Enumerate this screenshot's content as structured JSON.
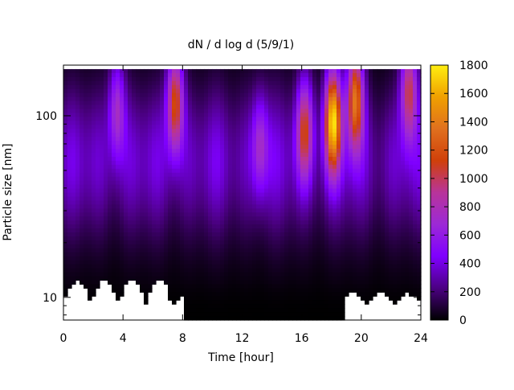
{
  "chart_data": {
    "type": "heatmap",
    "title": "dN / d log d (5/9/1)",
    "xlabel": "Time [hour]",
    "ylabel": "Particle size [nm]",
    "xlim": [
      0,
      24
    ],
    "x_ticks": [
      0,
      4,
      8,
      12,
      16,
      20,
      24
    ],
    "ylim": [
      7.5,
      190
    ],
    "y_scale": "log",
    "y_ticks": [
      10,
      100
    ],
    "colorbar": {
      "range": [
        0,
        1800
      ],
      "ticks": [
        0,
        200,
        400,
        600,
        800,
        1000,
        1200,
        1400,
        1600,
        1800
      ],
      "palette": [
        "#000000",
        "#4b0082",
        "#7f00ff",
        "#9c29d6",
        "#b8349a",
        "#d0400a",
        "#e0701e",
        "#f0a000",
        "#ffee10"
      ],
      "position": "right"
    },
    "background_level": 380,
    "features": [
      {
        "time_h": 3.6,
        "size_nm": 110,
        "peak": 900
      },
      {
        "time_h": 7.5,
        "size_nm": 120,
        "peak": 1350
      },
      {
        "time_h": 13.2,
        "size_nm": 70,
        "peak": 800
      },
      {
        "time_h": 16.2,
        "size_nm": 85,
        "peak": 1150
      },
      {
        "time_h": 18.1,
        "size_nm": 95,
        "peak": 1800
      },
      {
        "time_h": 19.6,
        "size_nm": 125,
        "peak": 1500
      },
      {
        "time_h": 23.2,
        "size_nm": 140,
        "peak": 1200
      }
    ]
  }
}
